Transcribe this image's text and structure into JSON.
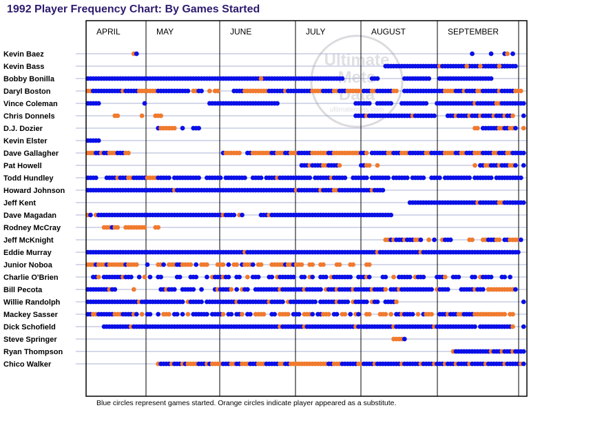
{
  "chart_data": {
    "type": "scatter",
    "title": "1992 Player Frequency Chart: By Games Started",
    "footnote": "Blue circles represent games started. Orange circles indicate player appeared as a substitute.",
    "months": [
      "APRIL",
      "MAY",
      "JUNE",
      "JULY",
      "AUGUST",
      "SEPTEMBER"
    ],
    "game_range": [
      1,
      162
    ],
    "legend": {
      "started": "blue circles",
      "substitute": "orange circles"
    },
    "watermark": {
      "line1": "Ultimate",
      "line2": "Mets",
      "line3": "Data",
      "line4": "ultimatemets.com"
    },
    "colors": {
      "started": "#0a10e6",
      "substitute": "#f07a2e",
      "title": "#2d1b6e",
      "row_line": "#8f96c4",
      "frame": "#000000"
    },
    "players": [
      {
        "name": "Kevin Baez",
        "segments": "S18:1|G19:1|G143:1|G150:1|G155:1|S156:1|G158:1"
      },
      {
        "name": "Kevin Bass",
        "segments": "G111:20|S131:1|G132:25|S141:1|S146:1|G148:12|S153:1"
      },
      {
        "name": "Bobby Bonilla",
        "segments": "G1:95|S65:1|G106:3|G118:10|G131:20"
      },
      {
        "name": "Daryl Boston",
        "segments": "S1:2|G3:11|S14:1|G15:5|S20:7|G27:12|S40:2|G42:2|S46:1|S48:2|G55:4|S59:9|G68:6|S74:1|G75:9|S84:4|G88:4|S92:2|G94:3|S97:6|G103:3|S106:2|G108:6|S114:2|G118:15|S133:4|G137:3|S140:1|G141:4|S145:2|G147:6|S153:1|G154:5|S159:3"
      },
      {
        "name": "Vince Coleman",
        "segments": "G1:5|G22:1|G46:26|G100:6|G108:6|G117:10|G130:6|G136:8|S144:1|G145:7|S152:2|G154:6|G160:3"
      },
      {
        "name": "Chris Donnels",
        "segments": "S11:2|S21:1|S26:3|G100:4|S104:1|G105:16|S121:1|G122:8|G134:3|S137:1|G138:4|S142:1|G143:3|S146:1|G147:4|S151:1|G152:3|S155:1|G156:2|S158:1|G162:1"
      },
      {
        "name": "D.J. Dozier",
        "segments": "G27:1|S28:6|G36:1|G40:3|S144:2|G147:6|S153:2|G155:2|S157:2|G159:1|S162:1"
      },
      {
        "name": "Kevin Elster",
        "segments": "G1:5"
      },
      {
        "name": "Dave Gallagher",
        "segments": "S1:3|G4:2|S6:1|G7:2|S9:3|G12:3|S15:2|G51:1|S52:6|G60:2|S62:7|G69:2|S71:3|G74:2|S76:3|G79:5|S84:6|G90:2|S92:10|G102:2|S104:1|G106:6|S112:2|G114:3|S117:3|G120:6|S126:2|G128:5|S133:4|G137:2|S139:2|G141:3|S144:3|G147:4|S151:2|G153:3|S156:2|G158:5"
      },
      {
        "name": "Pat Howell",
        "segments": "G80:3|S83:1|G84:4|S88:2|G90:4|S94:1|G102:2|S104:2|S108:1|S144:1|G146:2|S148:2|G150:3|S153:1|G154:3|S157:2|G159:1|G162:1"
      },
      {
        "name": "Todd Hundley",
        "segments": "G1:4|G8:4|S12:1|G13:3|S16:2|G18:5|S23:4|G27:5|G33:10|G45:6|G52:8|G62:4|G67:4|S71:1|G72:12|G85:6|S91:1|G92:5|G99:6|G106:7|G114:6|G121:5|G128:4|G133:10|G144:7|G152:10"
      },
      {
        "name": "Howard Johnson",
        "segments": "G1:32|S33:1|G34:44|S78:1|G79:8|S87:1|G88:4|S92:2|G94:12|S106:1|G107:4"
      },
      {
        "name": "Jeff Kent",
        "segments": "G120:25|S145:1|G146:7|S153:2|G155:8"
      },
      {
        "name": "Dave Magadan",
        "segments": "S1:1|G2:1|S4:1|G5:46|S51:1|G52:4|S57:1|G58:1|G65:3|S68:1|G69:45"
      },
      {
        "name": "Rodney McCray",
        "segments": "S7:3|G10:1|S11:2|S15:8|S26:2"
      },
      {
        "name": "Jeff McKnight",
        "segments": "S111:2|G113:1|S114:1|G115:3|S118:1|G119:3|S122:2|G124:1|S127:1|G129:1|S132:1|G133:3|S142:2|S147:2|G149:3|S152:2|G155:2|S157:4|G161:1"
      },
      {
        "name": "Eddie Murray",
        "segments": "G1:58|S59:1|G60:48|S108:1|G109:15|S124:1|G125:36"
      },
      {
        "name": "Junior Noboa",
        "segments": "S1:3|G4:1|S5:3|G8:1|S9:6|G15:1|S16:4|G23:1|S27:2|G29:1|S31:3|G34:2|S36:4|G41:1|S43:3|S49:3|G53:1|S55:2|G58:1|S59:3|G62:1|S64:2|S69:3|S72:2|G74:1|S75:2|G77:1|S78:3|S83:2|S87:2|S93:2|S98:2|S104:2"
      },
      {
        "name": "Charlie O'Brien",
        "segments": "G3:2|S5:1|G7:7|S14:1|G15:3|G20:1|S22:1|G24:1|G27:2|G34:2|G39:3|G45:1|S47:1|G48:3|S51:1|G52:2|G56:2|S60:1|G62:3|G68:2|S71:1|G72:6|G80:2|S83:1|G84:1|G87:3|S91:1|G92:7|G101:3|S104:1|G105:1|G110:2|S114:1|G116:5|S122:1|G123:3|G130:3|S133:1|G136:3|G143:2|S146:1|G147:4|G154:2|G157:1"
      },
      {
        "name": "Bill Pecota",
        "segments": "G1:8|S9:1|G10:2|S18:1|G28:2|S30:1|G31:3|G36:5|G43:1|G48:1|S49:1|G50:4|S54:1|G56:1|S58:1|G59:2|G63:9|S72:1|G73:8|S81:1|G82:6|S89:1|G90:3|S93:1|G94:5|S99:1|G100:6|S106:1|G107:4|S111:1|G113:3|S116:1|G117:12|S130:1|G131:4|G139:5|S144:1|G145:3|S149:10|G159:1"
      },
      {
        "name": "Willie Randolph",
        "segments": "G1:19|S20:1|G21:16|S38:1|G39:5|G45:11|S56:1|G57:11|S68:1|G69:5|S75:1|G76:10|G87:6|S93:1|G94:4|S99:1|G100:5|S106:1|G107:2|G111:4|S115:1|G162:1"
      },
      {
        "name": "Mackey Sasser",
        "segments": "G1:2|S3:2|G5:6|S11:3|G14:4|S18:1|G19:1|S21:1|G23:2|G27:1|S29:3|G33:2|G36:1|S38:1|G40:6|G47:4|S51:1|G53:2|G56:2|S58:1|G60:2|S63:4|G69:2|S72:4|G77:3|S81:3|G84:1|G86:2|S88:3|G92:2|S95:2|G98:1|S100:1|G101:1|S104:2|S109:3|S113:1|G115:2|S117:1|G118:4|S123:1|G125:1|S126:3|G131:3|S134:1|G135:3|S138:2|G140:4|S144:12|S157:2"
      },
      {
        "name": "Dick Schofield",
        "segments": "G7:10|S17:1|G18:54|S72:1|G73:8|S81:1|G82:18|S100:1|G101:4|G104:4|G108:6|S114:1|G115:14|S129:1|G130:15|G146:12|S158:1|G162:1"
      },
      {
        "name": "Steve Springer",
        "segments": "S114:4|G118:1"
      },
      {
        "name": "Ryan Thompson",
        "segments": "S136:1|G137:13|S150:1|G151:3|S154:1|G155:3|S158:1|G159:4"
      },
      {
        "name": "Chico Walker",
        "segments": "S27:1|G28:4|S32:1|G33:3|S36:1|G37:1|S38:4|G42:3|S45:1|G46:1|S47:4|G51:3|S54:2|G56:2|S58:3|G61:3|S64:3|G67:5|S72:2|G74:2|S76:14|G90:2|S92:3|G95:6|S101:2|G103:4|S107:1|G108:9|S117:1|G118:6|S124:1|G125:4|S129:1|G130:3|S133:1|G134:3|S137:1|G138:4|S142:1|G143:5|S148:1|G149:6|S155:1|G156:5|S161:1|G162:1"
      }
    ]
  }
}
